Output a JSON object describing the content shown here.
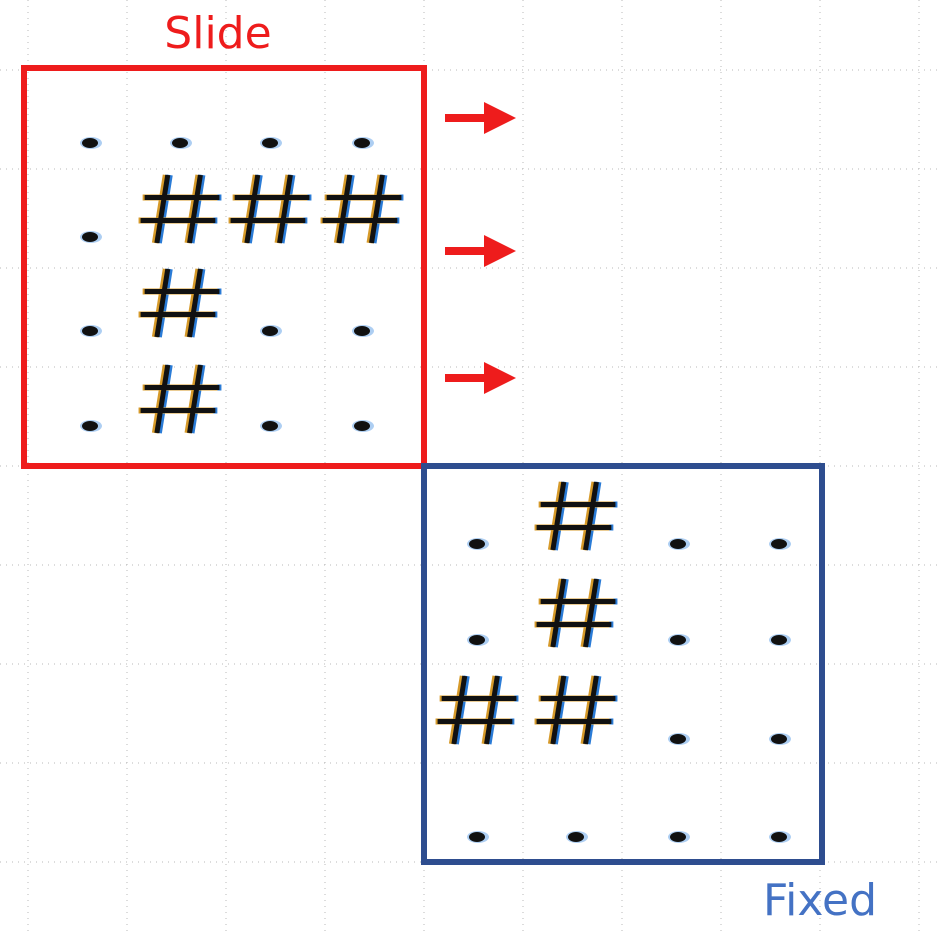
{
  "slide": {
    "label": "Slide",
    "color": "#ee1c1c",
    "grid": [
      [
        ".",
        ".",
        ".",
        "."
      ],
      [
        ".",
        "#",
        "#",
        "#"
      ],
      [
        ".",
        "#",
        ".",
        "."
      ],
      [
        ".",
        "#",
        ".",
        "."
      ]
    ]
  },
  "fixed": {
    "label": "Fixed",
    "color": "#2e4d8f",
    "label_color": "#4472c4",
    "grid": [
      [
        ".",
        "#",
        ".",
        "."
      ],
      [
        ".",
        "#",
        ".",
        "."
      ],
      [
        "#",
        "#",
        ".",
        "."
      ],
      [
        ".",
        ".",
        ".",
        "."
      ]
    ]
  },
  "arrows": {
    "count": 3,
    "color": "#ee1c1c"
  },
  "background_grid": {
    "dotted": true,
    "color": "#b8b8b8"
  }
}
